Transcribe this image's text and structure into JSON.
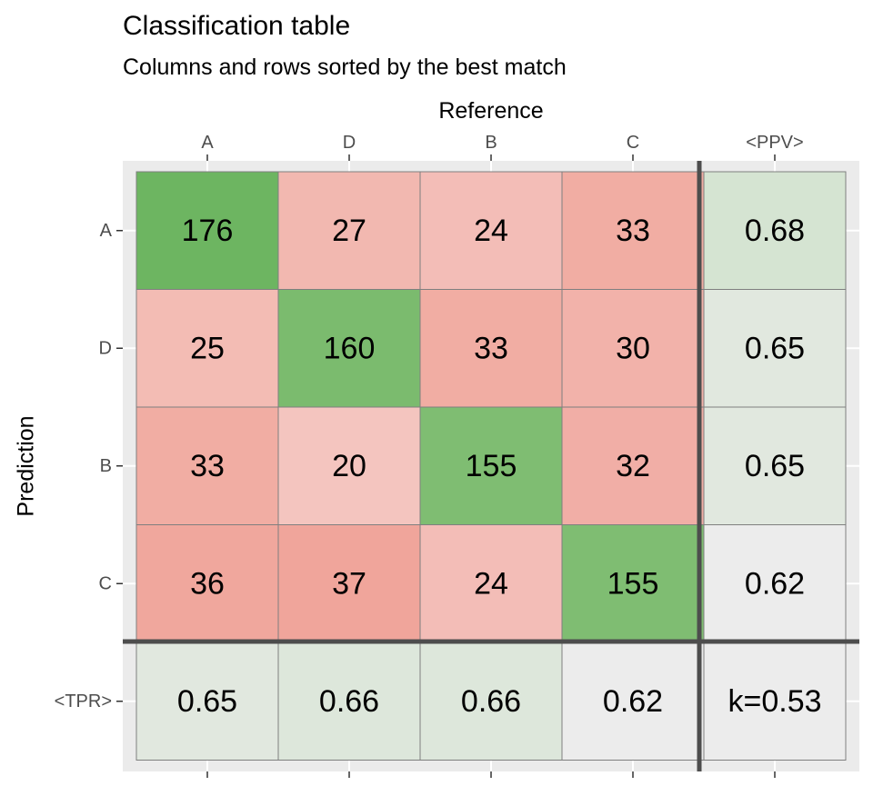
{
  "chart_data": {
    "type": "heatmap",
    "title": "Classification table",
    "subtitle": "Columns and rows sorted by the best match",
    "xlabel": "Reference",
    "ylabel": "Prediction",
    "columns": [
      "A",
      "D",
      "B",
      "C"
    ],
    "ppv_label": "<PPV>",
    "rows": [
      "A",
      "D",
      "B",
      "C"
    ],
    "tpr_label": "<TPR>",
    "matrix": [
      [
        176,
        27,
        24,
        33
      ],
      [
        25,
        160,
        33,
        30
      ],
      [
        33,
        20,
        155,
        32
      ],
      [
        36,
        37,
        24,
        155
      ]
    ],
    "ppv": [
      "0.68",
      "0.65",
      "0.65",
      "0.62"
    ],
    "tpr": [
      "0.65",
      "0.66",
      "0.66",
      "0.62"
    ],
    "kappa": "k=0.53",
    "colors": {
      "panel_background": "#ebebeb",
      "cell_border": "#7f7f7f",
      "separator": "#4d4d4d",
      "diagonal_high": "#6db561",
      "diagonal_low": "#7fbd72",
      "off_diagonal": [
        "#f4c5bf",
        "#f0a59b"
      ],
      "summary": [
        "#ececec",
        "#d5e4d2"
      ]
    }
  }
}
